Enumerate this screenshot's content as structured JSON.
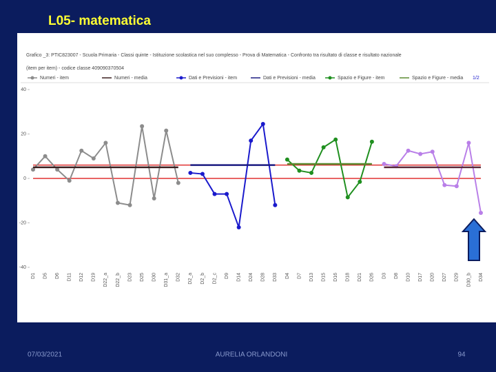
{
  "slide": {
    "title": "L05- matematica",
    "footer_date": "07/03/2021",
    "footer_author": "AURELIA ORLANDONI",
    "footer_page": "94"
  },
  "chart_data": {
    "type": "line",
    "title": "Grafico _3: PTIC823007 - Scuola Primaria - Classi quinte - Istituzione scolastica nel suo complesso - Prova di Matematica - Confronto tra risultato di classe e risultato nazionale",
    "subtitle": "(item per item) - codice classe 409090370504",
    "legend_page": "1/2",
    "categories": [
      "D1",
      "D5",
      "D6",
      "D11",
      "D12",
      "D19",
      "D22_a",
      "D22_b",
      "D23",
      "D25",
      "D30",
      "D31_a",
      "D32",
      "D2_a",
      "D2_b",
      "D2_c",
      "D9",
      "D14",
      "D24",
      "D28",
      "D33",
      "D4",
      "D7",
      "D13",
      "D15",
      "D16",
      "D18",
      "D21",
      "D26",
      "D3",
      "D8",
      "D10",
      "D17",
      "D20",
      "D27",
      "D29",
      "D30_b",
      "D34"
    ],
    "ylim": [
      -40,
      40
    ],
    "yticks": [
      -40,
      -20,
      0,
      20,
      40
    ],
    "grid": false,
    "reference_lines": [
      {
        "value": 0,
        "color": "#e03030"
      },
      {
        "value": 6,
        "color": "#e03030"
      }
    ],
    "series": [
      {
        "name": "Numeri - item",
        "color": "#8c8c8c",
        "style": "item",
        "values": [
          4,
          10,
          4,
          -1,
          12.5,
          9,
          16,
          -11,
          -12,
          23.5,
          -9,
          21.5,
          -2,
          null,
          null,
          null,
          null,
          null,
          null,
          null,
          null,
          null,
          null,
          null,
          null,
          null,
          null,
          null,
          null,
          null,
          null,
          null,
          null,
          null,
          null,
          null,
          null,
          null
        ]
      },
      {
        "name": "Numeri - media",
        "color": "#3a1f1f",
        "style": "media",
        "values": [
          5,
          5,
          5,
          5,
          5,
          5,
          5,
          5,
          5,
          5,
          5,
          5,
          5,
          null,
          null,
          null,
          null,
          null,
          null,
          null,
          null,
          null,
          null,
          null,
          null,
          null,
          null,
          null,
          null,
          null,
          null,
          null,
          null,
          null,
          null,
          null,
          null,
          null
        ]
      },
      {
        "name": "Dati e Previsioni - item",
        "color": "#1a1acc",
        "style": "item",
        "values": [
          null,
          null,
          null,
          null,
          null,
          null,
          null,
          null,
          null,
          null,
          null,
          null,
          null,
          2.5,
          2,
          -7,
          -7,
          -22,
          17,
          24.5,
          -12,
          null,
          null,
          null,
          null,
          null,
          null,
          null,
          null,
          null,
          null,
          null,
          null,
          null,
          null,
          null,
          null,
          null
        ]
      },
      {
        "name": "Dati e Previsioni - media",
        "color": "#1a1a80",
        "style": "media",
        "values": [
          null,
          null,
          null,
          null,
          null,
          null,
          null,
          null,
          null,
          null,
          null,
          null,
          null,
          6,
          6,
          6,
          6,
          6,
          6,
          6,
          6,
          null,
          null,
          null,
          null,
          null,
          null,
          null,
          null,
          null,
          null,
          null,
          null,
          null,
          null,
          null,
          null,
          null
        ]
      },
      {
        "name": "Spazio e Figure - item",
        "color": "#1f8f1f",
        "style": "item",
        "values": [
          null,
          null,
          null,
          null,
          null,
          null,
          null,
          null,
          null,
          null,
          null,
          null,
          null,
          null,
          null,
          null,
          null,
          null,
          null,
          null,
          null,
          8.5,
          3.5,
          2.5,
          14,
          17.5,
          -8.5,
          -1.5,
          16.5,
          null,
          null,
          null,
          null,
          null,
          null,
          null,
          null,
          null
        ]
      },
      {
        "name": "Spazio e Figure - media",
        "color": "#5a8a30",
        "style": "media",
        "values": [
          null,
          null,
          null,
          null,
          null,
          null,
          null,
          null,
          null,
          null,
          null,
          null,
          null,
          null,
          null,
          null,
          null,
          null,
          null,
          null,
          null,
          6.5,
          6.5,
          6.5,
          6.5,
          6.5,
          6.5,
          6.5,
          6.5,
          null,
          null,
          null,
          null,
          null,
          null,
          null,
          null,
          null
        ]
      },
      {
        "name": null,
        "color": "#b97fe8",
        "style": "item",
        "values": [
          null,
          null,
          null,
          null,
          null,
          null,
          null,
          null,
          null,
          null,
          null,
          null,
          null,
          null,
          null,
          null,
          null,
          null,
          null,
          null,
          null,
          null,
          null,
          null,
          null,
          null,
          null,
          null,
          null,
          6.5,
          5.5,
          12.5,
          11,
          12,
          -3,
          -3.5,
          16,
          -15.5
        ]
      },
      {
        "name": null,
        "color": "#5a2a3a",
        "style": "media",
        "values": [
          null,
          null,
          null,
          null,
          null,
          null,
          null,
          null,
          null,
          null,
          null,
          null,
          null,
          null,
          null,
          null,
          null,
          null,
          null,
          null,
          null,
          null,
          null,
          null,
          null,
          null,
          null,
          null,
          null,
          5,
          5,
          5,
          5,
          5,
          5,
          5,
          5,
          5
        ]
      }
    ]
  }
}
